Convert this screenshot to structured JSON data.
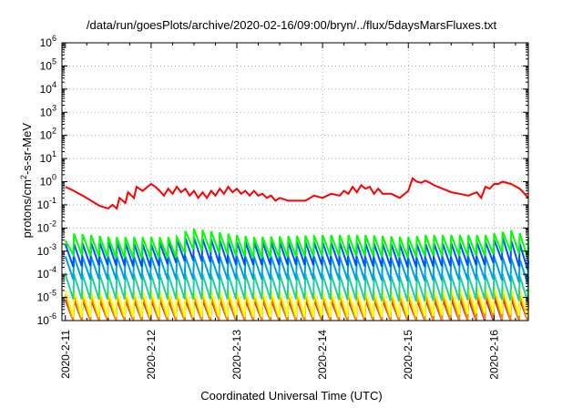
{
  "chart_data": {
    "type": "line",
    "title": "/data/run/goesPlots/archive/2020-02-16/09:00/bryn/../flux/5daysMarsFluxes.txt",
    "xlabel": "Coordinated Universal Time (UTC)",
    "ylabel": "protons/cm2-s-sr-MeV",
    "ylabel_parts": {
      "pre": "protons/cm",
      "sup": "2",
      "post": "-s-sr-MeV"
    },
    "yscale": "log",
    "ylim_exp": [
      -6,
      6
    ],
    "ytick_labels": [
      {
        "base": "10",
        "exp": "-6"
      },
      {
        "base": "10",
        "exp": "-5"
      },
      {
        "base": "10",
        "exp": "-4"
      },
      {
        "base": "10",
        "exp": "-3"
      },
      {
        "base": "10",
        "exp": "-2"
      },
      {
        "base": "10",
        "exp": "-1"
      },
      {
        "base": "10",
        "exp": "0"
      },
      {
        "base": "10",
        "exp": "1"
      },
      {
        "base": "10",
        "exp": "2"
      },
      {
        "base": "10",
        "exp": "3"
      },
      {
        "base": "10",
        "exp": "4"
      },
      {
        "base": "10",
        "exp": "5"
      },
      {
        "base": "10",
        "exp": "6"
      }
    ],
    "xlim": [
      -0.04,
      5.4
    ],
    "xticks": [
      {
        "value": 0,
        "label": "2020-2-11"
      },
      {
        "value": 1,
        "label": "2020-2-12"
      },
      {
        "value": 2,
        "label": "2020-2-13"
      },
      {
        "value": 3,
        "label": "2020-2-14"
      },
      {
        "value": 4,
        "label": "2020-2-15"
      },
      {
        "value": 5,
        "label": "2020-2-16"
      }
    ],
    "grid": true,
    "legend": "none",
    "series": [
      {
        "color": "#ff0000",
        "x": [
          0,
          0.1,
          0.2,
          0.3,
          0.4,
          0.5,
          0.55,
          0.6,
          0.63,
          0.7,
          0.73,
          0.8,
          0.83,
          0.9,
          1.0,
          1.05,
          1.1,
          1.15,
          1.2,
          1.25,
          1.3,
          1.35,
          1.4,
          1.45,
          1.5,
          1.55,
          1.6,
          1.65,
          1.7,
          1.75,
          1.8,
          1.85,
          1.9,
          1.95,
          2.0,
          2.05,
          2.1,
          2.15,
          2.2,
          2.25,
          2.3,
          2.35,
          2.4,
          2.45,
          2.5,
          2.6,
          2.7,
          2.8,
          2.9,
          3.0,
          3.1,
          3.2,
          3.25,
          3.3,
          3.35,
          3.4,
          3.45,
          3.5,
          3.55,
          3.6,
          3.65,
          3.7,
          3.8,
          3.9,
          4.0,
          4.05,
          4.1,
          4.15,
          4.2,
          4.25,
          4.3,
          4.4,
          4.5,
          4.6,
          4.7,
          4.8,
          4.85,
          4.9,
          4.95,
          5.0,
          5.05,
          5.1,
          5.2,
          5.3,
          5.4
        ],
        "y": [
          0.6,
          0.4,
          0.25,
          0.15,
          0.09,
          0.07,
          0.1,
          0.07,
          0.2,
          0.12,
          0.35,
          0.2,
          0.6,
          0.4,
          0.8,
          0.6,
          0.4,
          0.25,
          0.5,
          0.3,
          0.6,
          0.35,
          0.5,
          0.25,
          0.4,
          0.2,
          0.35,
          0.2,
          0.4,
          0.25,
          0.5,
          0.3,
          0.6,
          0.35,
          0.5,
          0.3,
          0.4,
          0.25,
          0.4,
          0.25,
          0.3,
          0.2,
          0.25,
          0.15,
          0.2,
          0.15,
          0.15,
          0.15,
          0.25,
          0.2,
          0.3,
          0.25,
          0.4,
          0.3,
          0.6,
          0.35,
          0.7,
          0.5,
          0.6,
          0.3,
          0.5,
          0.3,
          0.3,
          0.2,
          0.4,
          1.4,
          1.0,
          0.9,
          1.1,
          0.9,
          0.7,
          0.5,
          0.35,
          0.3,
          0.25,
          0.35,
          0.2,
          0.6,
          0.5,
          0.8,
          0.8,
          1.0,
          0.8,
          0.5,
          0.2
        ]
      },
      {
        "color": "#00ff00",
        "x": [
          0,
          0.03,
          0.3,
          0.55,
          1.0,
          1.3,
          1.45,
          2.0,
          2.2,
          3.0,
          3.5,
          4.0,
          4.2,
          4.9,
          5.2,
          5.3,
          5.4
        ],
        "y": [
          0.0028,
          0.006,
          0.005,
          0.004,
          0.004,
          0.004,
          0.01,
          0.005,
          0.004,
          0.005,
          0.005,
          0.004,
          0.005,
          0.005,
          0.008,
          0.006,
          0.004
        ],
        "amp": 8
      },
      {
        "color": "#0050ff",
        "x": [
          0,
          0.5,
          1.0,
          1.45,
          2.0,
          3.0,
          4.0,
          4.9,
          5.1,
          5.4
        ],
        "y": [
          0.002,
          0.0025,
          0.002,
          0.004,
          0.0025,
          0.0025,
          0.002,
          0.0025,
          0.004,
          0.0015
        ],
        "amp": 10
      },
      {
        "color": "#00a0e0",
        "x": [
          0,
          1.0,
          2.0,
          3.0,
          4.0,
          5.0,
          5.4
        ],
        "y": [
          0.0006,
          0.0006,
          0.0006,
          0.0006,
          0.0005,
          0.0006,
          0.0004
        ],
        "amp": 10
      },
      {
        "color": "#20d0a0",
        "x": [
          0,
          1.0,
          2.0,
          3.0,
          4.0,
          5.0,
          5.4
        ],
        "y": [
          0.0001,
          0.0001,
          0.0001,
          0.0001,
          8e-05,
          0.0001,
          8e-05
        ],
        "amp": 12
      },
      {
        "color": "#ffff00",
        "x": [
          0,
          1.0,
          2.0,
          3.0,
          4.0,
          5.0,
          5.4
        ],
        "y": [
          2e-05,
          2e-05,
          2e-05,
          2e-05,
          2e-05,
          3e-05,
          2e-05
        ],
        "amp": 14
      },
      {
        "color": "#ff8800",
        "x": [
          0,
          1.0,
          2.0,
          3.0,
          4.0,
          5.0,
          5.4
        ],
        "y": [
          1.2e-05,
          1.2e-05,
          1.2e-05,
          1.2e-05,
          1.2e-05,
          2e-05,
          1.2e-05
        ],
        "amp": 16
      },
      {
        "color": "#9c2a66",
        "x": [
          0,
          1.0,
          2.0,
          3.0,
          4.0,
          5.0,
          5.4
        ],
        "y": [
          8e-06,
          8e-06,
          8e-06,
          8e-06,
          8e-06,
          1e-05,
          8e-06
        ],
        "amp": 20
      }
    ]
  }
}
